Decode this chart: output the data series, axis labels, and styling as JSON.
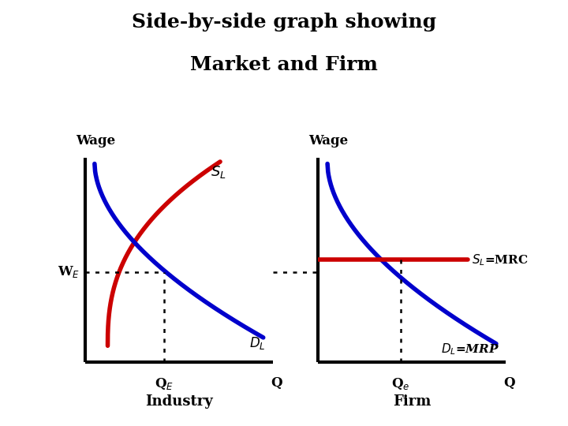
{
  "title_line1": "Side-by-side graph showing",
  "title_line2": "Market and Firm",
  "title_fontsize": 18,
  "title_fontweight": "bold",
  "bg_color": "#ffffff",
  "industry": {
    "ylabel": "Wage",
    "we_label": "W$_E$",
    "qe_label": "Q$_E$",
    "q_label": "Q",
    "sl_label": "$S_L$",
    "dl_label": "$D_L$",
    "bottom_label": "Industry",
    "we_val": 0.44,
    "qe_val": 0.42
  },
  "firm": {
    "ylabel": "Wage",
    "qe_label": "Q$_e$",
    "q_label": "Q",
    "sl_mrc_label": "$S_L$=MRC",
    "dl_mrp_label": "$D_L$=MRP",
    "bottom_label": "Firm",
    "we_val": 0.5,
    "qe_val": 0.44
  },
  "line_colors": {
    "supply": "#cc0000",
    "demand": "#0000cc",
    "sl_mrc": "#cc0000"
  },
  "line_width": 4.0,
  "axis_lw": 3.0
}
